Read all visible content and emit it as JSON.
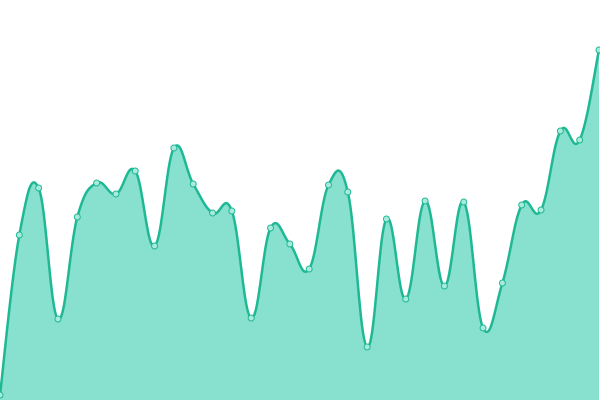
{
  "chart_data": {
    "type": "area",
    "values": [
      5,
      165,
      212,
      81,
      183,
      217,
      206,
      229,
      154,
      252,
      216,
      187,
      189,
      82,
      172,
      156,
      131,
      215,
      208,
      53,
      181,
      101,
      199,
      114,
      198,
      72,
      117,
      195,
      190,
      269,
      260,
      350
    ],
    "ylim": [
      0,
      400
    ],
    "color": "#1fb894",
    "fill": "#88e0cf",
    "marker_fill": "#a8ebdc"
  }
}
